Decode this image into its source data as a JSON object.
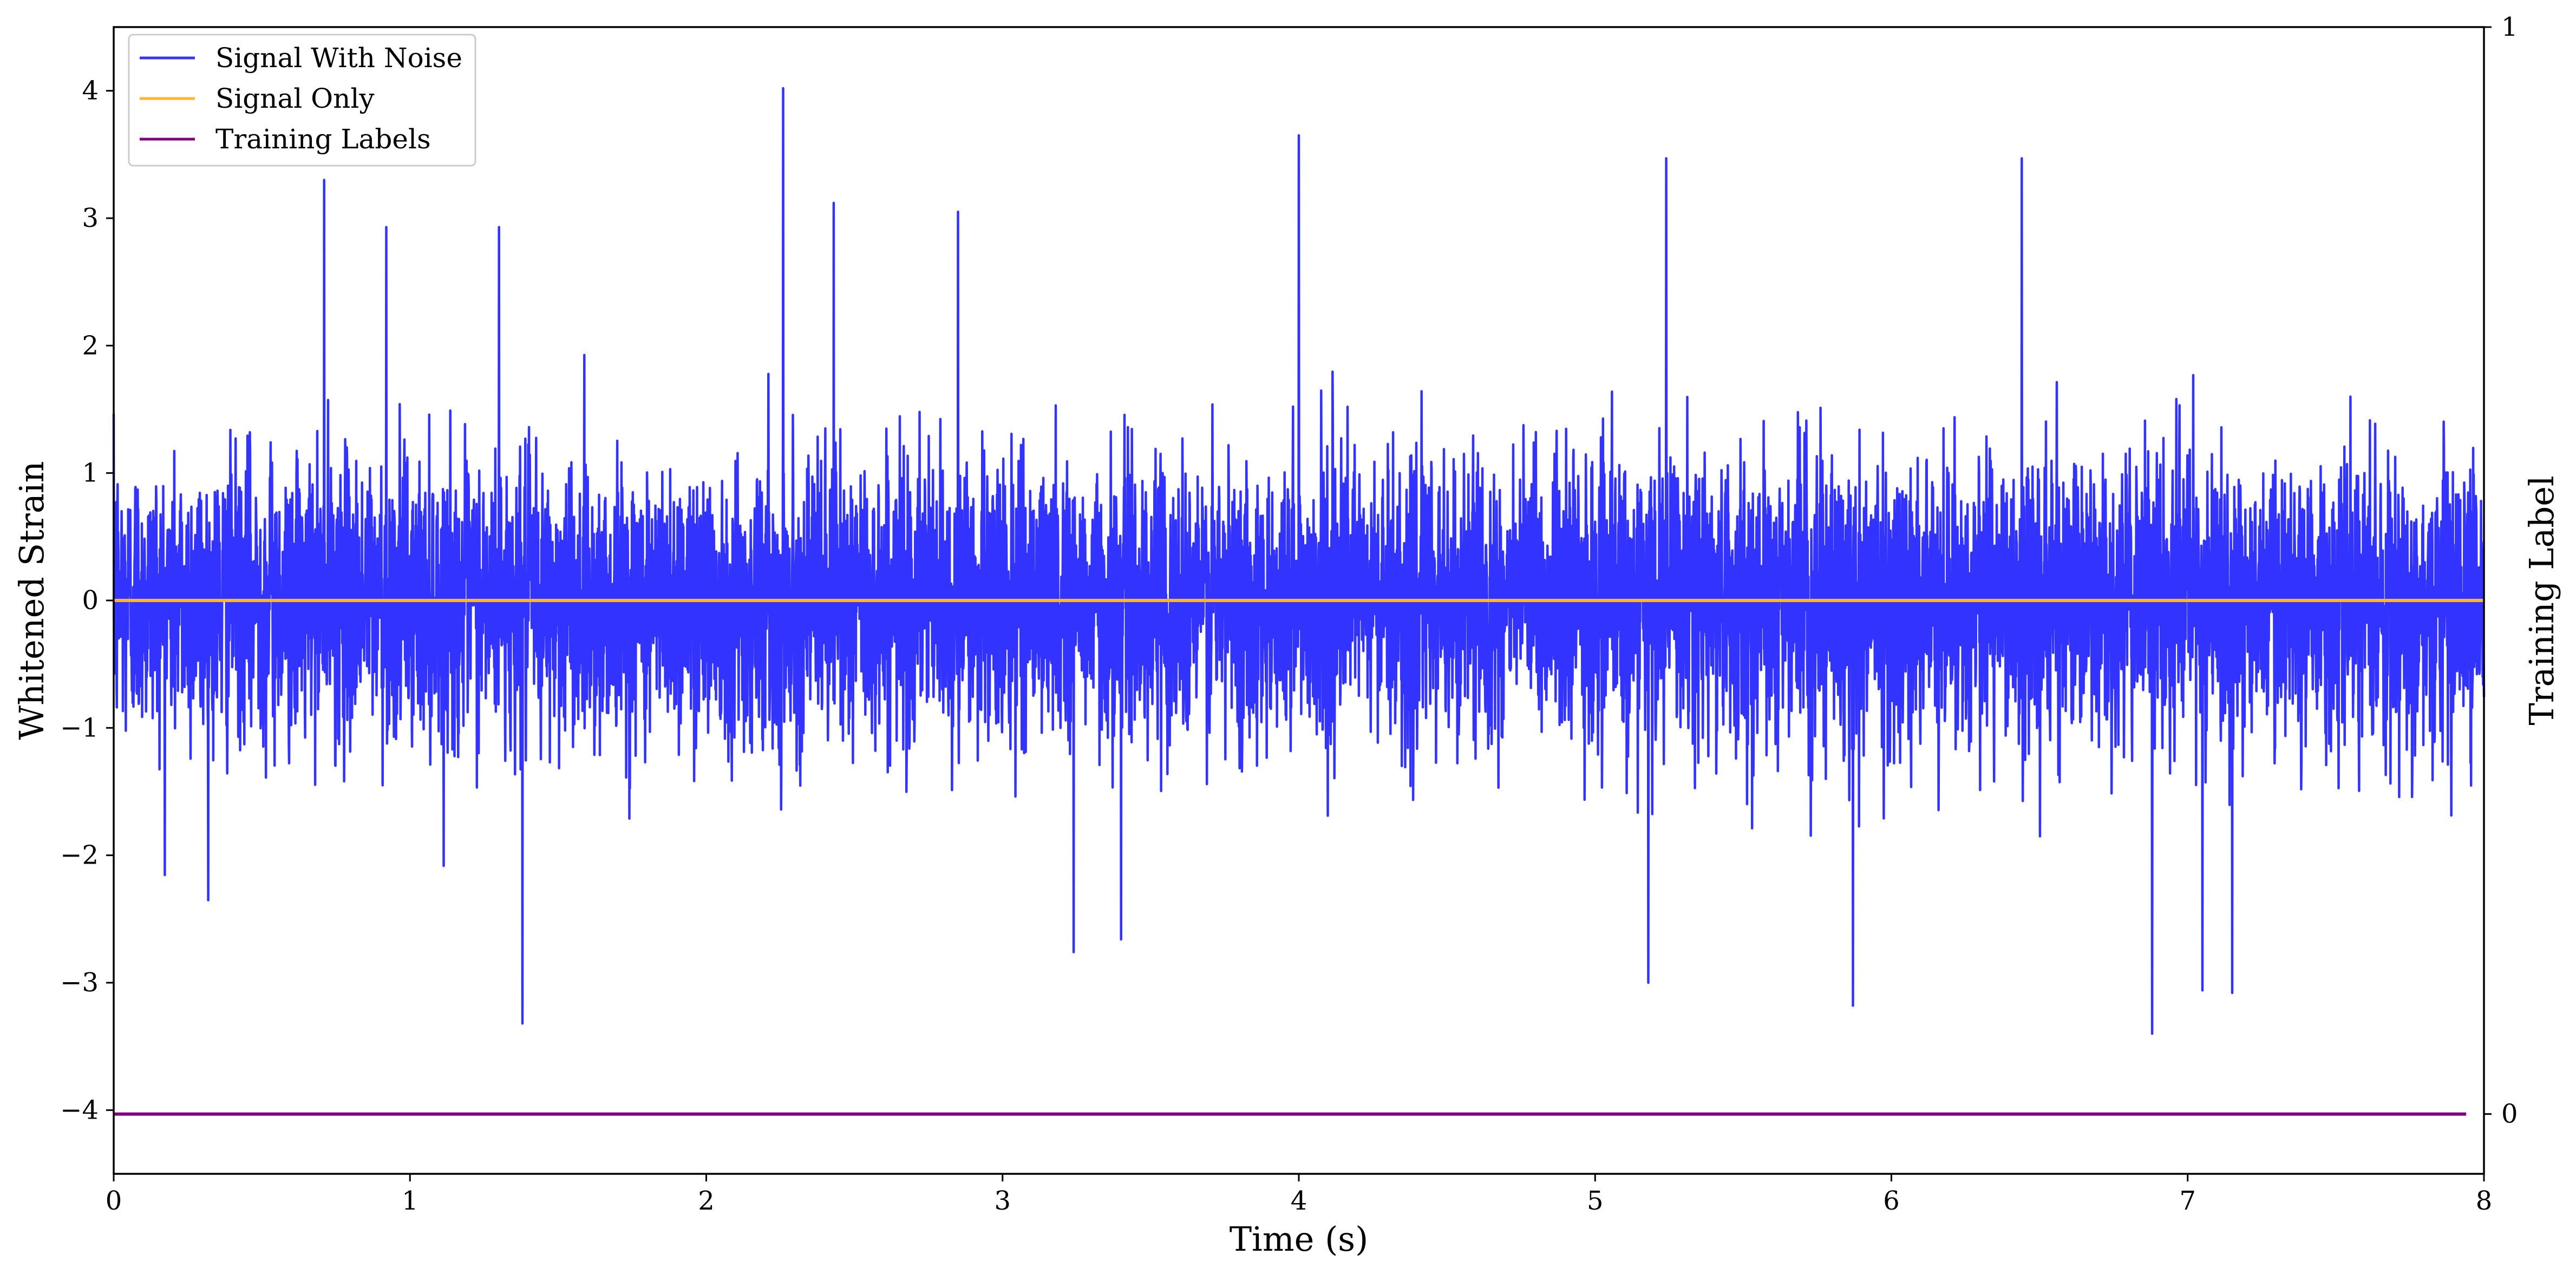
{
  "chart_data": {
    "type": "line",
    "xlabel": "Time (s)",
    "ylabel": "Whitened Strain",
    "y2label": "Training Label",
    "xlim": [
      0,
      8
    ],
    "ylim": [
      -4.5,
      4.5
    ],
    "y2lim": [
      -0.055,
      1.0
    ],
    "x_ticks": [
      "0",
      "1",
      "2",
      "3",
      "4",
      "5",
      "6",
      "7",
      "8"
    ],
    "x_tick_values": [
      0,
      1,
      2,
      3,
      4,
      5,
      6,
      7,
      8
    ],
    "y_ticks": [
      "−4",
      "−3",
      "−2",
      "−1",
      "0",
      "1",
      "2",
      "3",
      "4"
    ],
    "y_tick_values": [
      -4,
      -3,
      -2,
      -1,
      0,
      1,
      2,
      3,
      4
    ],
    "y2_ticks": [
      "0",
      "1"
    ],
    "y2_tick_values": [
      0,
      1
    ],
    "legend_position": "top-left",
    "grid": false,
    "series": [
      {
        "name": "Signal With Noise",
        "color": "#3333ff",
        "axis": "left",
        "noise_std": 0.62,
        "peaks": [
          {
            "x": 0.71,
            "y": 3.3
          },
          {
            "x": 0.92,
            "y": 2.93
          },
          {
            "x": 1.3,
            "y": 2.93
          },
          {
            "x": 1.38,
            "y": -3.32
          },
          {
            "x": 2.26,
            "y": 4.02
          },
          {
            "x": 2.43,
            "y": 3.12
          },
          {
            "x": 2.85,
            "y": 3.05
          },
          {
            "x": 3.24,
            "y": -2.76
          },
          {
            "x": 3.4,
            "y": -2.66
          },
          {
            "x": 4.0,
            "y": 3.65
          },
          {
            "x": 5.18,
            "y": -3.0
          },
          {
            "x": 5.24,
            "y": 3.47
          },
          {
            "x": 5.87,
            "y": -3.18
          },
          {
            "x": 6.44,
            "y": 3.47
          },
          {
            "x": 6.88,
            "y": -3.4
          },
          {
            "x": 7.05,
            "y": -3.06
          },
          {
            "x": 7.15,
            "y": -3.08
          }
        ]
      },
      {
        "name": "Signal Only",
        "color": "#ffb62e",
        "axis": "left",
        "x": [
          0,
          8
        ],
        "y": [
          0,
          0
        ]
      },
      {
        "name": "Training Labels",
        "color": "#800080",
        "axis": "right",
        "x": [
          0,
          7.94
        ],
        "y": [
          0,
          0
        ]
      }
    ]
  }
}
